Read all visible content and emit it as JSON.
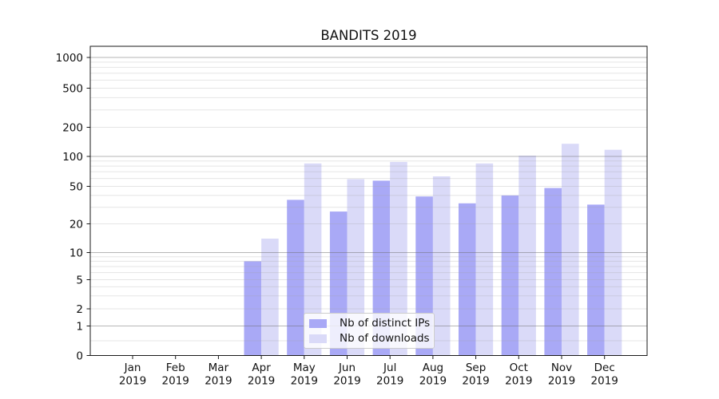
{
  "chart_data": {
    "type": "bar",
    "title": "BANDITS 2019",
    "categories": [
      "Jan 2019",
      "Feb 2019",
      "Mar 2019",
      "Apr 2019",
      "May 2019",
      "Jun 2019",
      "Jul 2019",
      "Aug 2019",
      "Sep 2019",
      "Oct 2019",
      "Nov 2019",
      "Dec 2019"
    ],
    "series": [
      {
        "name": "Nb of distinct IPs",
        "color": "#a9a9f6",
        "values": [
          null,
          null,
          null,
          8,
          36,
          27,
          57,
          39,
          33,
          40,
          48,
          32
        ]
      },
      {
        "name": "Nb of downloads",
        "color": "#dadaf8",
        "values": [
          null,
          null,
          null,
          14,
          85,
          59,
          88,
          63,
          85,
          102,
          135,
          117
        ]
      }
    ],
    "xlabel": "",
    "ylabel": "",
    "y_scale": "symlog-like",
    "y_ticks": [
      0,
      1,
      2,
      5,
      10,
      20,
      50,
      100,
      200,
      500,
      1000
    ],
    "ylim": [
      0,
      1000
    ],
    "grid": true,
    "legend_position": "lower center"
  }
}
